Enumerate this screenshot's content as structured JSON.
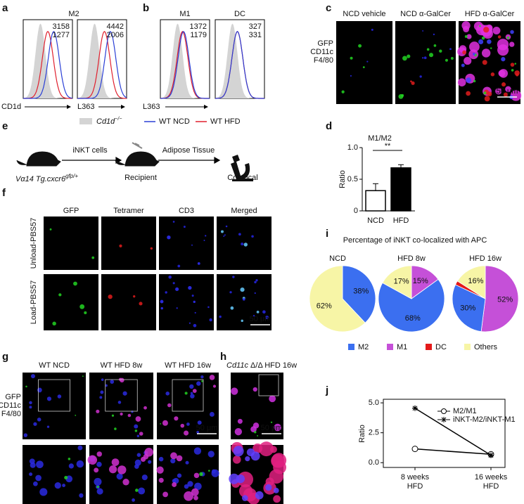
{
  "panel_labels": [
    "a",
    "b",
    "c",
    "d",
    "e",
    "f",
    "g",
    "h",
    "i",
    "j"
  ],
  "flow": {
    "a": {
      "title": "M2",
      "plots": [
        {
          "xlabel": "CD1d",
          "blue": "3158",
          "red": "1277"
        },
        {
          "xlabel": "L363",
          "blue": "4442",
          "red": "2006"
        }
      ]
    },
    "b": {
      "xlabel": "L363",
      "plots": [
        {
          "title": "M1",
          "blue": "1372",
          "red": "1179"
        },
        {
          "title": "DC",
          "blue": "327",
          "red": "331"
        }
      ]
    },
    "legend": [
      {
        "name": "Cd1d",
        "sup": "−/−",
        "color": "#d4d4d4"
      },
      {
        "name": "WT NCD",
        "color": "#2a3fd6"
      },
      {
        "name": "WT HFD",
        "color": "#e0202e"
      }
    ]
  },
  "c": {
    "columns": [
      "NCD vehicle",
      "NCD α-GalCer",
      "HFD α-GalCer"
    ],
    "channels": [
      {
        "name": "GFP",
        "color": "#22d422"
      },
      {
        "name": "CD11c",
        "color": "#e01c1c"
      },
      {
        "name": "F4/80",
        "color": "#2626e6"
      }
    ],
    "scale_bar": "50 μm"
  },
  "e": {
    "donor": {
      "main": "Vα14 Tg.",
      "gene": "cxcr6",
      "sup": "gfp/+"
    },
    "step1": "iNKT cells",
    "recipient": "Recipient",
    "step2": "Adipose Tissue",
    "readout": "Confocal"
  },
  "f": {
    "columns": [
      {
        "name": "GFP",
        "color": "#22c422"
      },
      {
        "name": "Tetramer",
        "color": "#e01c1c"
      },
      {
        "name": "CD3",
        "color": "#2626e6"
      },
      {
        "name": "Merged",
        "color": "#222222"
      }
    ],
    "rows": [
      "Unload-PBS57",
      "Load-PBS57"
    ],
    "scale_bar": "50 μm"
  },
  "g": {
    "columns": [
      "WT NCD",
      "WT HFD 8w",
      "WT HFD 16w"
    ],
    "channels": [
      {
        "name": "GFP",
        "color": "#22d422"
      },
      {
        "name": "CD11c",
        "color": "#e01c1c"
      },
      {
        "name": "F4/80",
        "color": "#2626e6"
      }
    ],
    "scale_bar": "50 μm"
  },
  "h": {
    "title": {
      "gene": "Cd11c",
      "rest": " Δ/Δ HFD 16w"
    },
    "scale_bar": "50 μm"
  },
  "i": {
    "title": "Percentage of iNKT co-localized with APC"
  },
  "chart_data": [
    {
      "type": "bar",
      "title": "M1/M2",
      "categories": [
        "NCD",
        "HFD"
      ],
      "values": [
        0.32,
        0.68
      ],
      "errors": [
        0.11,
        0.05
      ],
      "colors": [
        "#ffffff",
        "#000000"
      ],
      "ylabel": "Ratio",
      "ylim": [
        0,
        1
      ],
      "yticks": [
        0,
        0.5,
        {
          "value": 1,
          "label": "1.0"
        }
      ],
      "annotation": "**"
    },
    {
      "type": "pie",
      "title": "NCD",
      "categories": [
        "M2",
        "M1",
        "DC",
        "Others"
      ],
      "colors": [
        "#3b6ff0",
        "#c550d8",
        "#e41a1a",
        "#f7f5a6"
      ],
      "values": [
        38,
        0,
        0,
        62
      ],
      "value_labels": [
        "38%",
        null,
        null,
        "62%"
      ]
    },
    {
      "type": "pie",
      "title": "HFD 8w",
      "categories": [
        "M2",
        "M1",
        "DC",
        "Others"
      ],
      "colors": [
        "#3b6ff0",
        "#c550d8",
        "#e41a1a",
        "#f7f5a6"
      ],
      "values": [
        68,
        15,
        0,
        17
      ],
      "value_labels": [
        "68%",
        "15%",
        null,
        "17%"
      ]
    },
    {
      "type": "pie",
      "title": "HFD 16w",
      "categories": [
        "M2",
        "M1",
        "DC",
        "Others"
      ],
      "colors": [
        "#3b6ff0",
        "#c550d8",
        "#e41a1a",
        "#f7f5a6"
      ],
      "values": [
        30,
        52,
        2,
        16
      ],
      "value_labels": [
        "30%",
        "52%",
        null,
        "16%"
      ]
    },
    {
      "type": "line",
      "categories": [
        [
          "8 weeks",
          "HFD"
        ],
        [
          "16 weeks",
          "HFD"
        ]
      ],
      "series": [
        {
          "name": "M2/M1",
          "marker": "circle",
          "color": "#000000",
          "values": [
            1.15,
            0.7
          ]
        },
        {
          "name": "iNKT-M2/iNKT-M1",
          "marker": "asterisk",
          "color": "#000000",
          "values": [
            4.55,
            0.62
          ]
        }
      ],
      "ylabel": "Ratio",
      "ylim": [
        -0.4,
        5.3
      ],
      "yticks": [
        {
          "value": 0,
          "label": "0.0"
        },
        {
          "value": 2.5,
          "label": "2.5"
        },
        {
          "value": 5,
          "label": "5.0"
        }
      ]
    }
  ]
}
